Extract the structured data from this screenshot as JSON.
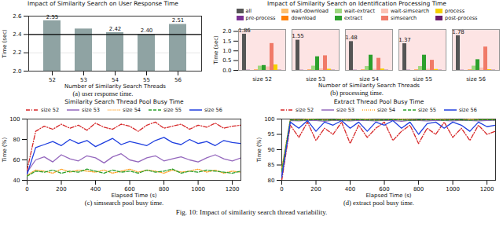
{
  "chart_data": [
    {
      "type": "bar",
      "title": "Impact of Similarity Search on User Response Time",
      "caption": "(a) user response time.",
      "x_label": "Number of Similarity Search Threads",
      "y_label": "Time (sec)",
      "categories": [
        "52",
        "53",
        "54",
        "55",
        "56"
      ],
      "values": [
        2.55,
        2.46,
        2.42,
        2.4,
        2.51
      ],
      "value_labels": [
        "2.55",
        null,
        "2.42",
        "2.40",
        "2.51"
      ],
      "data_labels": true,
      "color": "#8fa3a3",
      "reference_line": 2.4,
      "ylim": [
        2.0,
        2.6
      ],
      "yticks": [
        {
          "value": 2.0,
          "label": "2.0"
        },
        {
          "value": 2.2,
          "label": "2.2"
        },
        {
          "value": 2.4,
          "label": "2.4"
        },
        {
          "value": 2.6,
          "label": "2.6"
        }
      ],
      "grid": true
    },
    {
      "type": "bar",
      "title": "Impact of Similarity Search on Identification Processing Time",
      "caption": "(b) processing time.",
      "x_label": "Number of Similarity Search Threads",
      "y_label": "Time (sec)",
      "categories": [
        "size 52",
        "size 53",
        "size 54",
        "size 55",
        "size 56"
      ],
      "series": [
        {
          "name": "all",
          "color": "#555555",
          "values": [
            1.86,
            1.55,
            1.48,
            1.37,
            1.78
          ],
          "data_labels": true
        },
        {
          "name": "pre-process",
          "color": "#7b3294",
          "values": [
            0.01,
            0.01,
            0.01,
            0.01,
            0.01
          ]
        },
        {
          "name": "wait-download",
          "color": "#fdbf6f",
          "values": [
            0.0,
            0.0,
            0.0,
            0.0,
            0.0
          ]
        },
        {
          "name": "download",
          "color": "#ff7f00",
          "values": [
            0.02,
            0.02,
            0.02,
            0.02,
            0.02
          ]
        },
        {
          "name": "wait-extract",
          "color": "#9fd77f",
          "values": [
            0.22,
            0.22,
            0.2,
            0.2,
            0.22
          ]
        },
        {
          "name": "extract",
          "color": "#2ca02c",
          "values": [
            0.25,
            0.7,
            0.78,
            0.78,
            0.55
          ]
        },
        {
          "name": "wait-simsearch",
          "color": "#fbc2b5",
          "values": [
            0.18,
            0.08,
            0.06,
            0.06,
            0.12
          ]
        },
        {
          "name": "simsearch",
          "color": "#f07a68",
          "values": [
            1.38,
            0.75,
            0.62,
            0.52,
            1.2
          ]
        },
        {
          "name": "process",
          "color": "#f5d000",
          "values": [
            0.28,
            0.06,
            0.07,
            0.05,
            0.04
          ]
        },
        {
          "name": "post-process",
          "color": "#6a1b6a",
          "values": [
            0.01,
            0.01,
            0.01,
            0.01,
            0.01
          ]
        }
      ],
      "ylim": [
        0,
        2.1
      ],
      "yticks": [
        {
          "value": 0,
          "label": "0.0"
        },
        {
          "value": 0.5,
          "label": "0.5"
        },
        {
          "value": 1,
          "label": "1.0"
        },
        {
          "value": 1.5,
          "label": "1.5"
        },
        {
          "value": 2,
          "label": "2.0"
        }
      ],
      "legend": "top"
    },
    {
      "type": "line",
      "title": "Similarity Search Thread Pool Busy Time",
      "caption": "(c) simsearch pool busy time.",
      "x_label": "Elapsed Time (s)",
      "y_label": "Time (%)",
      "x": [
        0,
        50,
        100,
        150,
        200,
        250,
        300,
        350,
        400,
        450,
        500,
        550,
        600,
        650,
        700,
        750,
        800,
        850,
        900,
        950,
        1000,
        1050,
        1100,
        1150,
        1200,
        1250
      ],
      "series": [
        {
          "name": "size 52",
          "color": "#d62728",
          "line_style": "dashdot",
          "values": [
            50,
            88,
            93,
            90,
            95,
            91,
            94,
            89,
            96,
            92,
            90,
            95,
            93,
            88,
            94,
            97,
            91,
            93,
            95,
            90,
            94,
            92,
            96,
            91,
            93,
            94
          ]
        },
        {
          "name": "size 53",
          "color": "#9467bd",
          "line_style": "solid",
          "values": [
            48,
            60,
            63,
            58,
            65,
            61,
            59,
            64,
            62,
            57,
            63,
            66,
            60,
            58,
            62,
            64,
            59,
            61,
            63,
            60,
            58,
            62,
            65,
            61,
            59,
            62
          ]
        },
        {
          "name": "size 54",
          "color": "#ff9f1c",
          "line_style": "dotted",
          "values": [
            45,
            50,
            49,
            47,
            51,
            48,
            50,
            49,
            48,
            50,
            47,
            49,
            51,
            48,
            50,
            49,
            47,
            50,
            48,
            49,
            51,
            48,
            50,
            47,
            49,
            48
          ]
        },
        {
          "name": "size 55",
          "color": "#2ca02c",
          "line_style": "dashed",
          "values": [
            44,
            49,
            48,
            50,
            47,
            49,
            48,
            51,
            49,
            47,
            50,
            48,
            49,
            47,
            50,
            48,
            49,
            51,
            47,
            49,
            48,
            50,
            49,
            48,
            47,
            49
          ]
        },
        {
          "name": "size 56",
          "color": "#1f3fdf",
          "line_style": "solid",
          "values": [
            46,
            72,
            75,
            78,
            74,
            80,
            76,
            79,
            73,
            77,
            81,
            75,
            78,
            76,
            74,
            79,
            82,
            77,
            75,
            80,
            76,
            78,
            74,
            79,
            77,
            76
          ]
        }
      ],
      "xlim": [
        0,
        1250
      ],
      "xticks": [
        0,
        200,
        400,
        600,
        800,
        1000,
        1200
      ],
      "ylim": [
        40,
        100
      ],
      "yticks": [
        40,
        60,
        80,
        100
      ],
      "legend": "bottom"
    },
    {
      "type": "line",
      "title": "Extract Thread Pool Busy Time",
      "caption": "(d) extract pool busy time.",
      "x_label": "Elapsed Time (s)",
      "y_label": "Time (%)",
      "x": [
        0,
        50,
        100,
        150,
        200,
        250,
        300,
        350,
        400,
        450,
        500,
        550,
        600,
        650,
        700,
        750,
        800,
        850,
        900,
        950,
        1000,
        1050,
        1100,
        1150,
        1200,
        1250
      ],
      "series": [
        {
          "name": "size 52",
          "color": "#d62728",
          "line_style": "dashdot",
          "values": [
            80,
            98,
            94,
            99,
            93,
            97,
            95,
            99,
            92,
            98,
            94,
            97,
            99,
            93,
            96,
            98,
            92,
            97,
            95,
            99,
            94,
            97,
            93,
            98,
            95,
            96
          ]
        },
        {
          "name": "size 53",
          "color": "#9467bd",
          "line_style": "solid",
          "values": [
            82,
            99.5,
            99.4,
            99.6,
            99.5,
            99.3,
            99.6,
            99.5,
            99.4,
            99.6,
            99.5,
            99.4,
            99.6,
            99.5,
            99.3,
            99.6,
            99.5,
            99.4,
            99.6,
            99.5,
            99.4,
            99.6,
            99.5,
            99.4,
            99.5,
            99.6
          ]
        },
        {
          "name": "size 54",
          "color": "#ff9f1c",
          "line_style": "dotted",
          "values": [
            84,
            99.8,
            99.7,
            99.9,
            99.8,
            99.8,
            99.7,
            99.9,
            99.8,
            99.8,
            99.9,
            99.7,
            99.8,
            99.8,
            99.9,
            99.8,
            99.7,
            99.8,
            99.9,
            99.8,
            99.8,
            99.7,
            99.9,
            99.8,
            99.8,
            99.8
          ]
        },
        {
          "name": "size 55",
          "color": "#2ca02c",
          "line_style": "dashed",
          "values": [
            83,
            99.7,
            99.6,
            99.7,
            99.8,
            99.6,
            99.7,
            99.7,
            99.6,
            99.8,
            99.7,
            99.6,
            99.7,
            99.8,
            99.7,
            99.6,
            99.7,
            99.7,
            99.8,
            99.6,
            99.7,
            99.7,
            99.6,
            99.7,
            99.8,
            99.7
          ]
        },
        {
          "name": "size 56",
          "color": "#1f3fdf",
          "line_style": "solid",
          "values": [
            81,
            99,
            97,
            99.5,
            96,
            99,
            98,
            99.5,
            97,
            99,
            96,
            99,
            98,
            99.5,
            97,
            99,
            95,
            98.5,
            99,
            97,
            99,
            98,
            96,
            99,
            97.5,
            98
          ]
        }
      ],
      "xlim": [
        0,
        1250
      ],
      "xticks": [
        0,
        200,
        400,
        600,
        800,
        1000,
        1200
      ],
      "ylim": [
        80,
        100
      ],
      "yticks": [
        80,
        85,
        90,
        95,
        100
      ],
      "legend": "bottom"
    }
  ],
  "caption": "Fig. 10: Impact of similarity search thread variability."
}
